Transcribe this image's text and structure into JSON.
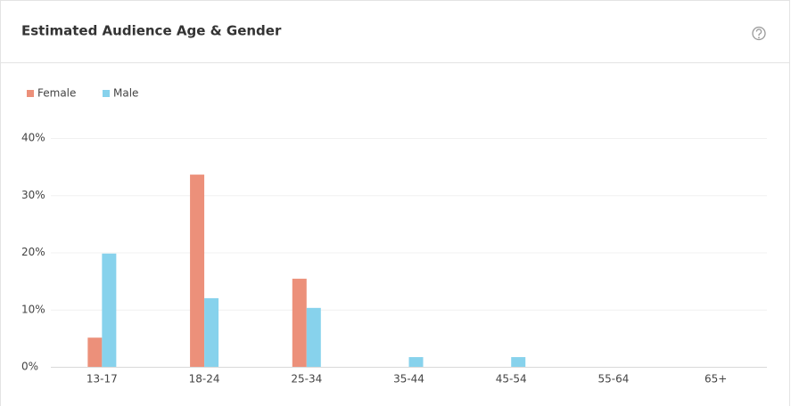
{
  "chart_data": {
    "type": "bar",
    "title": "Estimated Audience Age & Gender",
    "categories": [
      "13-17",
      "18-24",
      "25-34",
      "35-44",
      "45-54",
      "55-64",
      "65+"
    ],
    "series": [
      {
        "name": "Female",
        "color": "#ec907a",
        "values": [
          5.1,
          33.6,
          15.4,
          0,
          0,
          0,
          0
        ]
      },
      {
        "name": "Male",
        "color": "#87d2ec",
        "values": [
          19.8,
          12.0,
          10.3,
          1.7,
          1.7,
          0,
          0
        ]
      }
    ],
    "ylim": [
      0,
      40
    ],
    "yticks": [
      {
        "value": 0,
        "label": "0%"
      },
      {
        "value": 10,
        "label": "10%"
      },
      {
        "value": 20,
        "label": "20%"
      },
      {
        "value": 30,
        "label": "30%"
      },
      {
        "value": 40,
        "label": "40%"
      }
    ],
    "grid": true,
    "legend": "top-left"
  }
}
